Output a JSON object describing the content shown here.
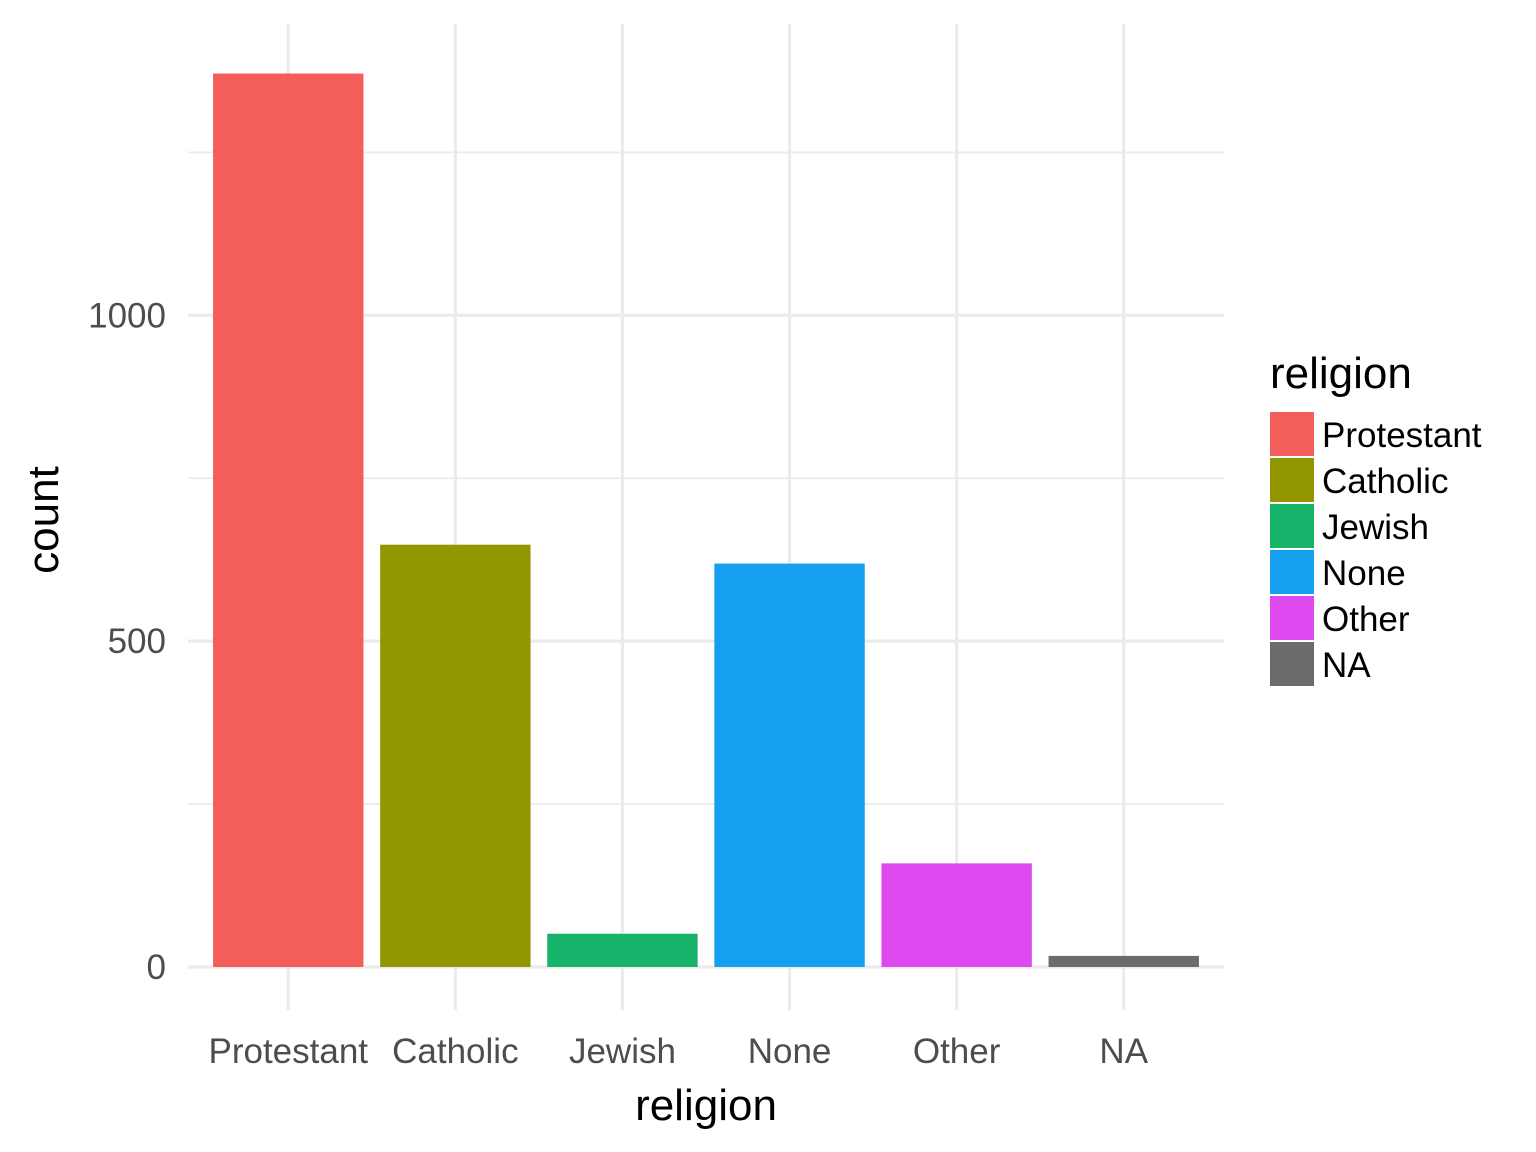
{
  "chart_data": {
    "type": "bar",
    "title": "",
    "xlabel": "religion",
    "ylabel": "count",
    "categories": [
      "Protestant",
      "Catholic",
      "Jewish",
      "None",
      "Other",
      "NA"
    ],
    "values": [
      1371,
      648,
      51,
      619,
      159,
      17
    ],
    "colors": [
      "#F35E5A",
      "#919601",
      "#17B36B",
      "#15A0EF",
      "#DD49EE",
      "#6B6B6B"
    ],
    "ylim": [
      -66,
      1447
    ],
    "yticks": [
      0,
      500,
      1000
    ],
    "yticks_minor": [
      250,
      750,
      1250
    ],
    "ytick_labels": [
      "0",
      "500",
      "1000"
    ],
    "grid": true,
    "legend": {
      "title": "religion",
      "position": "right",
      "entries": [
        "Protestant",
        "Catholic",
        "Jewish",
        "None",
        "Other",
        "NA"
      ]
    }
  }
}
